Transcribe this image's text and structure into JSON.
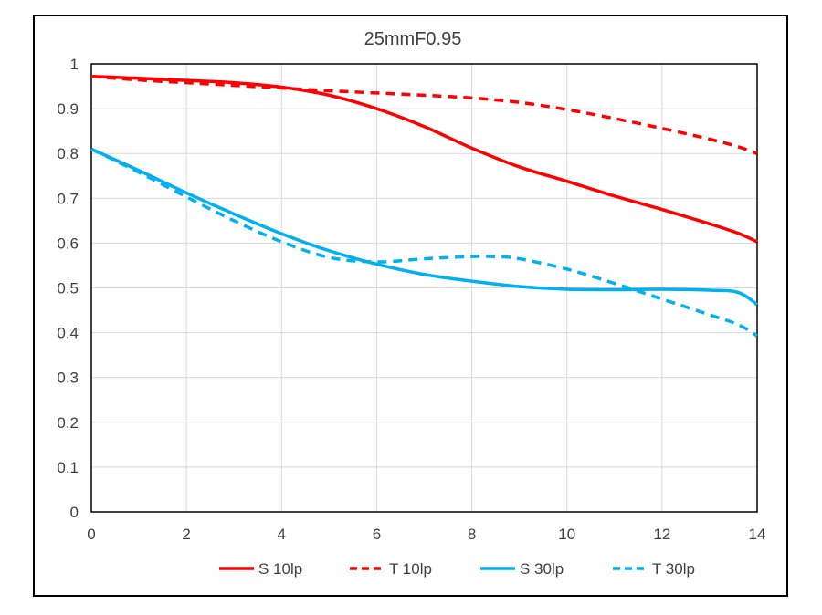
{
  "chart_data": {
    "type": "line",
    "title": "25mmF0.95",
    "xlabel": "",
    "ylabel": "",
    "xlim": [
      0,
      14
    ],
    "ylim": [
      0,
      1
    ],
    "xticks": [
      0,
      2,
      4,
      6,
      8,
      10,
      12,
      14
    ],
    "yticks": [
      0,
      0.1,
      0.2,
      0.3,
      0.4,
      0.5,
      0.6,
      0.7,
      0.8,
      0.9,
      1
    ],
    "xtick_labels": [
      "0",
      "2",
      "4",
      "6",
      "8",
      "10",
      "12",
      "14"
    ],
    "ytick_labels": [
      "0",
      "0.1",
      "0.2",
      "0.3",
      "0.4",
      "0.5",
      "0.6",
      "0.7",
      "0.8",
      "0.9",
      "1"
    ],
    "grid": true,
    "legend_position": "bottom",
    "series": [
      {
        "name": "S 10lp",
        "color": "#ff0000",
        "style": "solid",
        "x": [
          0,
          1,
          2,
          3,
          4,
          5,
          6,
          7,
          8,
          9,
          10,
          11,
          12,
          13,
          13.6,
          14
        ],
        "y": [
          0.972,
          0.968,
          0.963,
          0.958,
          0.948,
          0.93,
          0.9,
          0.86,
          0.812,
          0.77,
          0.738,
          0.705,
          0.675,
          0.643,
          0.622,
          0.603
        ]
      },
      {
        "name": "T 10lp",
        "color": "#ff0000",
        "style": "dashed",
        "x": [
          0,
          1,
          2,
          3,
          4,
          5,
          6,
          7,
          8,
          9,
          10,
          11,
          12,
          13,
          13.6,
          14
        ],
        "y": [
          0.972,
          0.964,
          0.958,
          0.952,
          0.946,
          0.94,
          0.935,
          0.93,
          0.924,
          0.914,
          0.898,
          0.878,
          0.856,
          0.832,
          0.815,
          0.8
        ]
      },
      {
        "name": "S 30lp",
        "color": "#00b0f0",
        "style": "solid",
        "x": [
          0,
          1,
          2,
          3,
          4,
          5,
          6,
          7,
          8,
          9,
          10,
          11,
          12,
          13,
          13.6,
          14
        ],
        "y": [
          0.81,
          0.762,
          0.712,
          0.665,
          0.621,
          0.583,
          0.553,
          0.53,
          0.515,
          0.503,
          0.497,
          0.496,
          0.497,
          0.495,
          0.49,
          0.463
        ]
      },
      {
        "name": "T 30lp",
        "color": "#00b0f0",
        "style": "dashed",
        "x": [
          0,
          1,
          2,
          3,
          4,
          5,
          6,
          7,
          8,
          8.5,
          9,
          10,
          11,
          12,
          13,
          13.6,
          14
        ],
        "y": [
          0.81,
          0.758,
          0.703,
          0.65,
          0.603,
          0.568,
          0.558,
          0.565,
          0.57,
          0.57,
          0.565,
          0.542,
          0.51,
          0.475,
          0.44,
          0.418,
          0.393
        ]
      }
    ]
  }
}
